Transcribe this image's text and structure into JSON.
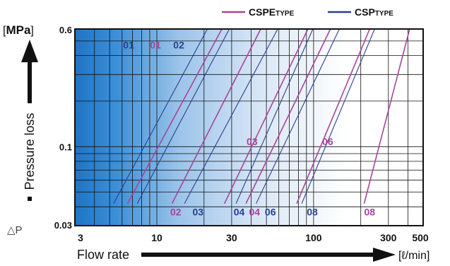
{
  "chart_data": {
    "type": "line",
    "x_scale": "log",
    "y_scale": "log",
    "xlim": [
      3,
      500
    ],
    "ylim": [
      0.03,
      0.6
    ],
    "x_ticks": [
      "3",
      "10",
      "30",
      "100",
      "300",
      "500"
    ],
    "y_ticks": [
      "0.6",
      "0.1",
      "0.03"
    ],
    "xlabel": "Flow rate",
    "x_unit": "[ℓ/min]",
    "ylabel": "Pressure loss",
    "y_symbol": "△P",
    "y_unit_open": "[",
    "y_unit": "MPa",
    "y_unit_close": "]",
    "legend_position": "top-right",
    "legend": [
      {
        "main": "CSPE",
        "small": "TYPE",
        "color": "#a8449a"
      },
      {
        "main": "CSP",
        "small": "TYPE",
        "color": "#2a3f8f"
      }
    ],
    "series": [
      {
        "name": "01",
        "family": "CSP",
        "color": "#2a3f8f",
        "points": [
          [
            5.3,
            0.042
          ],
          [
            21,
            0.6
          ]
        ]
      },
      {
        "name": "01",
        "family": "CSPE",
        "color": "#a8449a",
        "points": [
          [
            6.5,
            0.042
          ],
          [
            26,
            0.6
          ]
        ]
      },
      {
        "name": "02",
        "family": "CSP",
        "color": "#2a3f8f",
        "points": [
          [
            7.5,
            0.042
          ],
          [
            29,
            0.6
          ]
        ]
      },
      {
        "name": "02",
        "family": "CSPE",
        "color": "#a8449a",
        "points": [
          [
            12.5,
            0.042
          ],
          [
            46,
            0.6
          ]
        ]
      },
      {
        "name": "03",
        "family": "CSP",
        "color": "#2a3f8f",
        "points": [
          [
            15,
            0.042
          ],
          [
            59,
            0.6
          ]
        ]
      },
      {
        "name": "03",
        "family": "CSPE",
        "color": "#a8449a",
        "points": [
          [
            27,
            0.042
          ],
          [
            92,
            0.6
          ]
        ]
      },
      {
        "name": "04",
        "family": "CSP",
        "color": "#2a3f8f",
        "points": [
          [
            32,
            0.042
          ],
          [
            99,
            0.6
          ]
        ]
      },
      {
        "name": "04",
        "family": "CSPE",
        "color": "#a8449a",
        "points": [
          [
            37,
            0.042
          ],
          [
            128,
            0.6
          ]
        ]
      },
      {
        "name": "06",
        "family": "CSP",
        "color": "#2a3f8f",
        "points": [
          [
            43,
            0.042
          ],
          [
            146,
            0.6
          ]
        ]
      },
      {
        "name": "06",
        "family": "CSPE",
        "color": "#a8449a",
        "points": [
          [
            78,
            0.042
          ],
          [
            228,
            0.6
          ]
        ]
      },
      {
        "name": "08",
        "family": "CSP",
        "color": "#2a3f8f",
        "points": [
          [
            84,
            0.042
          ],
          [
            245,
            0.6
          ]
        ]
      },
      {
        "name": "08",
        "family": "CSPE",
        "color": "#a8449a",
        "points": [
          [
            210,
            0.042
          ],
          [
            410,
            0.6
          ]
        ]
      }
    ],
    "annotations": [
      {
        "text": "01",
        "family": "CSP",
        "x": 6.6,
        "y": 0.47,
        "color": "#2a3f8f"
      },
      {
        "text": "01",
        "family": "CSPE",
        "x": 9.8,
        "y": 0.47,
        "color": "#a8449a"
      },
      {
        "text": "02",
        "family": "CSP",
        "x": 13.8,
        "y": 0.47,
        "color": "#2a3f8f"
      },
      {
        "text": "02",
        "family": "CSPE",
        "x": 13.2,
        "y": 0.037,
        "color": "#a8449a"
      },
      {
        "text": "03",
        "family": "CSP",
        "x": 18.3,
        "y": 0.037,
        "color": "#2a3f8f"
      },
      {
        "text": "03",
        "family": "CSPE",
        "x": 40.5,
        "y": 0.108,
        "color": "#a8449a"
      },
      {
        "text": "04",
        "family": "CSP",
        "x": 33.5,
        "y": 0.037,
        "color": "#2a3f8f"
      },
      {
        "text": "04",
        "family": "CSPE",
        "x": 42,
        "y": 0.037,
        "color": "#a8449a"
      },
      {
        "text": "06",
        "family": "CSP",
        "x": 53,
        "y": 0.037,
        "color": "#2a3f8f"
      },
      {
        "text": "06",
        "family": "CSPE",
        "x": 123,
        "y": 0.108,
        "color": "#a8449a"
      },
      {
        "text": "08",
        "family": "CSP",
        "x": 98,
        "y": 0.037,
        "color": "#2a3f8f"
      },
      {
        "text": "08",
        "family": "CSPE",
        "x": 228,
        "y": 0.037,
        "color": "#a8449a"
      }
    ]
  }
}
